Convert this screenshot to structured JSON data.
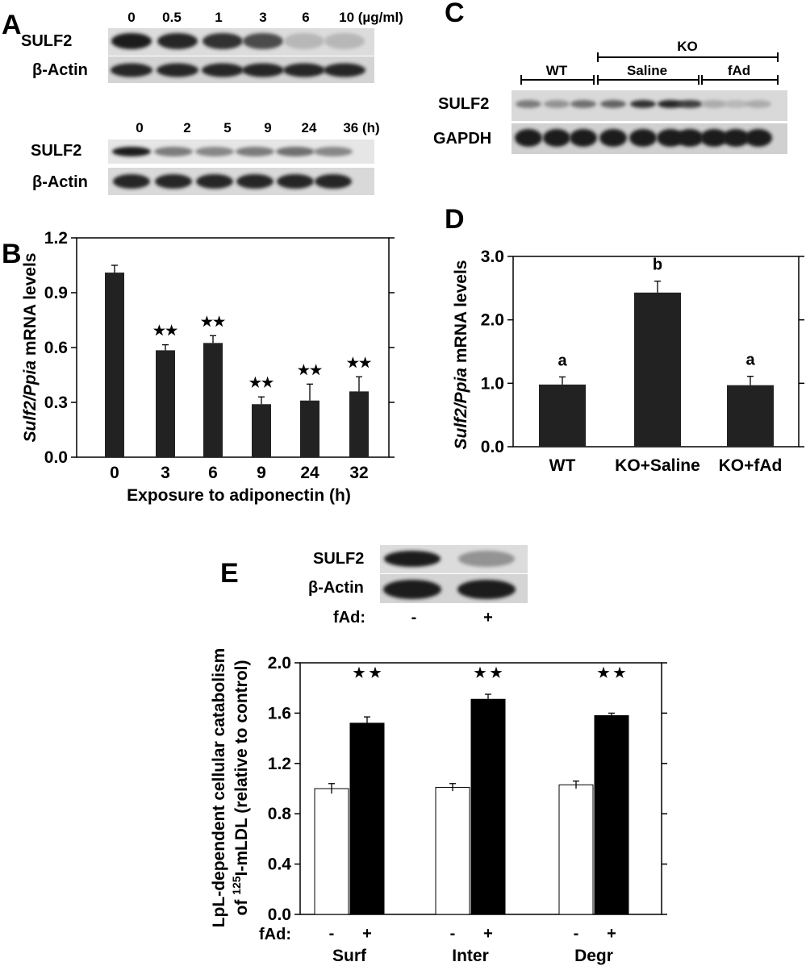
{
  "panels": {
    "A": {
      "label": "A",
      "blot1": {
        "lanes": [
          "0",
          "0.5",
          "1",
          "3",
          "6",
          "10 (µg/ml)"
        ],
        "rows": [
          "SULF2",
          "β-Actin"
        ],
        "sulf2_intensity": [
          0.95,
          0.9,
          0.85,
          0.75,
          0.3,
          0.3
        ],
        "actin_intensity": [
          0.9,
          0.9,
          0.9,
          0.9,
          0.9,
          0.9
        ]
      },
      "blot2": {
        "lanes": [
          "0",
          "2",
          "5",
          "9",
          "24",
          "36 (h)"
        ],
        "rows": [
          "SULF2",
          "β-Actin"
        ],
        "sulf2_intensity": [
          0.95,
          0.55,
          0.5,
          0.55,
          0.6,
          0.5
        ],
        "actin_intensity": [
          0.9,
          0.9,
          0.9,
          0.9,
          0.9,
          0.9
        ]
      }
    },
    "B": {
      "label": "B"
    },
    "C": {
      "label": "C",
      "group_top": "KO",
      "groups": [
        "WT",
        "Saline",
        "fAd"
      ],
      "rows": [
        "SULF2",
        "GAPDH"
      ],
      "sulf2_intensity": [
        0.55,
        0.45,
        0.6,
        0.65,
        0.85,
        0.9,
        0.8,
        0.35,
        0.3,
        0.35
      ],
      "gapdh_intensity": [
        0.95,
        0.95,
        0.95,
        0.95,
        0.95,
        0.95,
        0.95,
        0.95,
        0.95,
        0.95
      ]
    },
    "D": {
      "label": "D"
    },
    "E": {
      "label": "E",
      "blot": {
        "rows": [
          "SULF2",
          "β-Actin"
        ],
        "treatment_label": "fAd:",
        "treatment_signs": [
          "-",
          "+"
        ],
        "sulf2_intensity": [
          0.95,
          0.45
        ],
        "actin_intensity": [
          0.95,
          0.95
        ]
      },
      "treatment_label": "fAd:",
      "signs": [
        "-",
        "+"
      ]
    }
  },
  "chart_data": [
    {
      "panel": "B",
      "type": "bar",
      "categories": [
        "0",
        "3",
        "6",
        "9",
        "24",
        "32"
      ],
      "values": [
        1.01,
        0.585,
        0.625,
        0.29,
        0.31,
        0.36
      ],
      "errors": [
        0.04,
        0.03,
        0.04,
        0.04,
        0.09,
        0.08
      ],
      "significance": [
        "",
        "★★",
        "★★",
        "★★",
        "★★",
        "★★"
      ],
      "xlabel": "Exposure to adiponectin (h)",
      "ylabel_italic": "Sulf2/Ppia",
      "ylabel_rest": " mRNA levels",
      "yticks": [
        "0.0",
        "0.3",
        "0.6",
        "0.9",
        "1.2"
      ],
      "ylim": [
        0,
        1.2
      ],
      "bar_color": "#222222",
      "grid": false
    },
    {
      "panel": "D",
      "type": "bar",
      "categories": [
        "WT",
        "KO+Saline",
        "KO+fAd"
      ],
      "values": [
        0.98,
        2.43,
        0.97
      ],
      "errors": [
        0.12,
        0.18,
        0.14
      ],
      "significance": [
        "a",
        "b",
        "a"
      ],
      "ylabel_italic": "Sulf2/Ppia",
      "ylabel_rest": " mRNA levels",
      "yticks": [
        "0.0",
        "1.0",
        "2.0",
        "3.0"
      ],
      "ylim": [
        0,
        3.0
      ],
      "bar_color": "#222222",
      "grid": false
    },
    {
      "panel": "E",
      "type": "bar",
      "categories": [
        "Surf",
        "Inter",
        "Degr"
      ],
      "series": [
        {
          "values": [
            1.0,
            1.01,
            1.03
          ],
          "errors": [
            0.04,
            0.03,
            0.03
          ],
          "color": "#ffffff"
        },
        {
          "values": [
            1.52,
            1.71,
            1.58
          ],
          "errors": [
            0.05,
            0.04,
            0.02
          ],
          "color": "#000000"
        }
      ],
      "significance": [
        "★ ★",
        "★ ★",
        "★ ★"
      ],
      "ylabel_line1": "LpL-dependent cellular catabolism",
      "ylabel_line2_pre": "of ",
      "ylabel_line2_sup": "125",
      "ylabel_line2_post": "I-mLDL (relative to control)",
      "yticks": [
        "0.0",
        "0.4",
        "0.8",
        "1.2",
        "1.6",
        "2.0"
      ],
      "ylim": [
        0,
        2.0
      ],
      "grid": false
    }
  ]
}
